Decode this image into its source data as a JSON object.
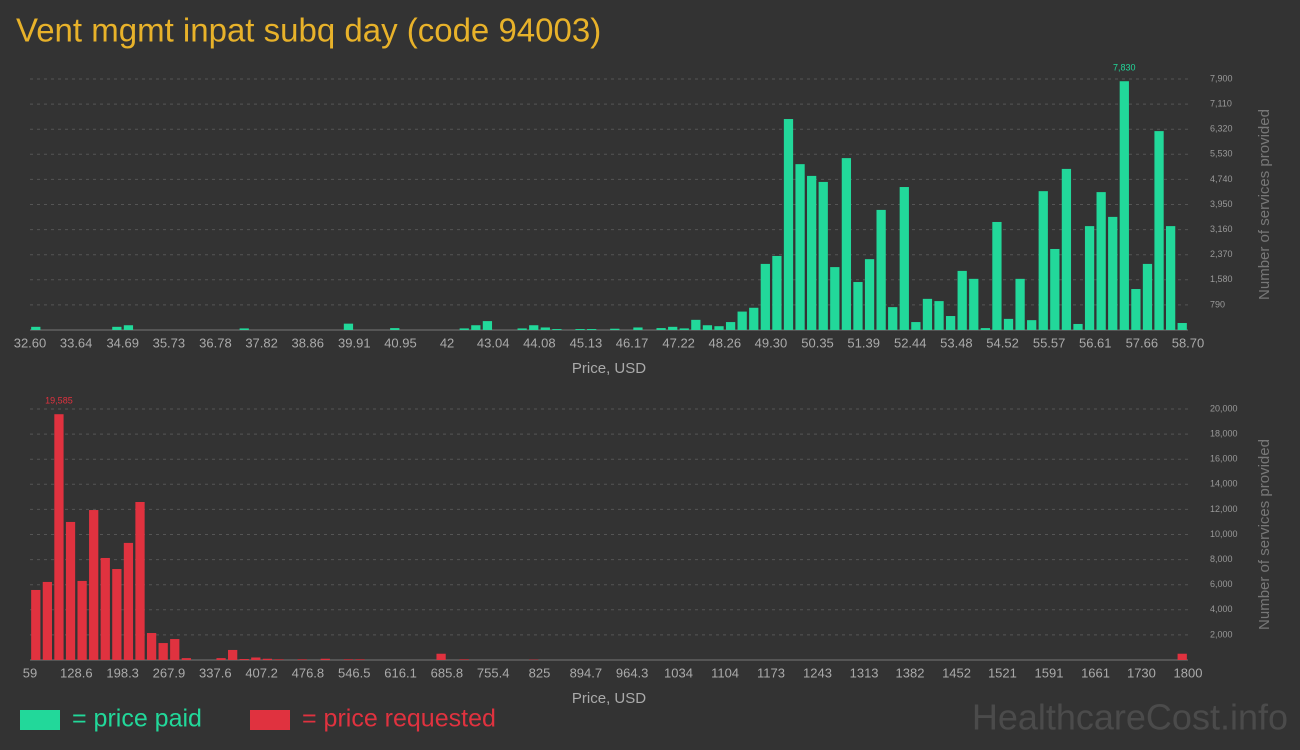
{
  "title": "Vent mgmt inpat subq day (code 94003)",
  "watermark": "HealthcareCost.info",
  "chart_data": [
    {
      "type": "histogram",
      "x_label": "Price, USD",
      "y_label": "Number of services provided",
      "grid": true,
      "xlim": [
        32.6,
        58.7
      ],
      "xticks": [
        {
          "value": 32.6,
          "label": "32.60"
        },
        33.64,
        34.69,
        35.73,
        36.78,
        37.82,
        38.86,
        39.91,
        40.95,
        42,
        43.04,
        44.08,
        45.13,
        46.17,
        47.22,
        48.26,
        {
          "value": 49.3,
          "label": "49.30"
        },
        50.35,
        51.39,
        52.44,
        53.48,
        54.52,
        55.57,
        56.61,
        57.66,
        {
          "value": 58.7,
          "label": "58.70"
        }
      ],
      "ylim": [
        0,
        7900
      ],
      "yticks": [
        790,
        {
          "value": 1580,
          "label": "1,580"
        },
        {
          "value": 2370,
          "label": "2,370"
        },
        {
          "value": 3160,
          "label": "3,160"
        },
        {
          "value": 3950,
          "label": "3,950"
        },
        {
          "value": 4740,
          "label": "4,740"
        },
        {
          "value": 5530,
          "label": "5,530"
        },
        {
          "value": 6320,
          "label": "6,320"
        },
        {
          "value": 7110,
          "label": "7,110"
        },
        {
          "value": 7900,
          "label": "7,900"
        }
      ],
      "series": [
        {
          "name": "= price paid",
          "color": "#22d89a",
          "values": [
            100,
            0,
            0,
            0,
            0,
            0,
            0,
            100,
            150,
            0,
            0,
            0,
            0,
            0,
            0,
            0,
            0,
            0,
            50,
            0,
            0,
            0,
            0,
            0,
            0,
            0,
            0,
            200,
            0,
            0,
            0,
            60,
            0,
            0,
            0,
            0,
            0,
            50,
            150,
            280,
            0,
            0,
            50,
            150,
            80,
            30,
            0,
            30,
            30,
            0,
            40,
            0,
            80,
            0,
            60,
            100,
            50,
            320,
            150,
            120,
            250,
            580,
            700,
            2080,
            2330,
            6640,
            5220,
            4850,
            4660,
            1980,
            5410,
            1510,
            2230,
            3780,
            720,
            4500,
            250,
            980,
            910,
            440,
            1860,
            1610,
            60,
            3400,
            350,
            1610,
            310,
            4370,
            2550,
            5070,
            190,
            3270,
            4340,
            3560,
            7830,
            1290,
            2080,
            6260,
            3270,
            220
          ],
          "value_labels": [
            null,
            null,
            null,
            null,
            null,
            null,
            null,
            null,
            null,
            null,
            null,
            null,
            null,
            null,
            null,
            null,
            null,
            null,
            null,
            null,
            null,
            null,
            null,
            null,
            null,
            null,
            null,
            null,
            null,
            null,
            null,
            null,
            null,
            null,
            null,
            null,
            null,
            null,
            null,
            null,
            null,
            null,
            null,
            null,
            null,
            null,
            null,
            null,
            null,
            null,
            null,
            null,
            null,
            null,
            null,
            null,
            null,
            null,
            null,
            null,
            null,
            null,
            null,
            null,
            null,
            null,
            null,
            null,
            null,
            null,
            null,
            null,
            null,
            null,
            null,
            null,
            null,
            null,
            null,
            null,
            null,
            null,
            null,
            null,
            null,
            null,
            null,
            null,
            null,
            null,
            null,
            null,
            null,
            null,
            "7,830",
            null,
            null,
            null,
            null,
            null
          ]
        }
      ]
    },
    {
      "type": "histogram",
      "x_label": "Price, USD",
      "y_label": "Number of services provided",
      "grid": true,
      "xlim": [
        59,
        1800
      ],
      "xticks": [
        59,
        128.6,
        198.3,
        267.9,
        337.6,
        407.2,
        476.8,
        546.5,
        616.1,
        685.8,
        755.4,
        825,
        894.7,
        964.3,
        1034,
        1104,
        1173,
        1243,
        1313,
        1382,
        1452,
        1521,
        1591,
        1661,
        1730,
        1800
      ],
      "ylim": [
        0,
        20000
      ],
      "yticks": [
        {
          "value": 2000,
          "label": "2,000"
        },
        {
          "value": 4000,
          "label": "4,000"
        },
        {
          "value": 6000,
          "label": "6,000"
        },
        {
          "value": 8000,
          "label": "8,000"
        },
        {
          "value": 10000,
          "label": "10,000"
        },
        {
          "value": 12000,
          "label": "12,000"
        },
        {
          "value": 14000,
          "label": "14,000"
        },
        {
          "value": 16000,
          "label": "16,000"
        },
        {
          "value": 18000,
          "label": "18,000"
        },
        {
          "value": 20000,
          "label": "20,000"
        }
      ],
      "series": [
        {
          "name": "= price requested",
          "color": "#e0323f",
          "values": [
            5580,
            6220,
            19585,
            11000,
            6300,
            11950,
            8130,
            7250,
            9330,
            12590,
            2150,
            1350,
            1670,
            150,
            0,
            0,
            150,
            800,
            80,
            200,
            100,
            50,
            0,
            50,
            0,
            100,
            0,
            50,
            50,
            0,
            0,
            0,
            0,
            0,
            0,
            500,
            0,
            50,
            0,
            0,
            0,
            0,
            0,
            30,
            0,
            0,
            0,
            0,
            0,
            0,
            0,
            0,
            0,
            0,
            0,
            0,
            0,
            0,
            0,
            0,
            0,
            0,
            0,
            0,
            0,
            0,
            0,
            0,
            0,
            0,
            0,
            0,
            0,
            0,
            0,
            0,
            0,
            0,
            0,
            0,
            0,
            0,
            0,
            0,
            0,
            0,
            0,
            0,
            0,
            0,
            0,
            0,
            0,
            0,
            0,
            0,
            0,
            0,
            0,
            500
          ],
          "value_labels": [
            null,
            null,
            "19,585",
            null,
            null,
            null,
            null,
            null,
            null,
            null,
            null,
            null,
            null,
            null,
            null,
            null,
            null,
            null,
            null,
            null,
            null,
            null,
            null,
            null,
            null,
            null,
            null,
            null,
            null,
            null,
            null,
            null,
            null,
            null,
            null,
            null,
            null,
            null,
            null,
            null,
            null,
            null,
            null,
            null,
            null,
            null,
            null,
            null,
            null,
            null,
            null,
            null,
            null,
            null,
            null,
            null,
            null,
            null,
            null,
            null,
            null,
            null,
            null,
            null,
            null,
            null,
            null,
            null,
            null,
            null,
            null,
            null,
            null,
            null,
            null,
            null,
            null,
            null,
            null,
            null,
            null,
            null,
            null,
            null,
            null,
            null,
            null,
            null,
            null,
            null,
            null,
            null,
            null,
            null,
            null,
            null,
            null,
            null,
            null,
            null
          ]
        }
      ]
    }
  ]
}
